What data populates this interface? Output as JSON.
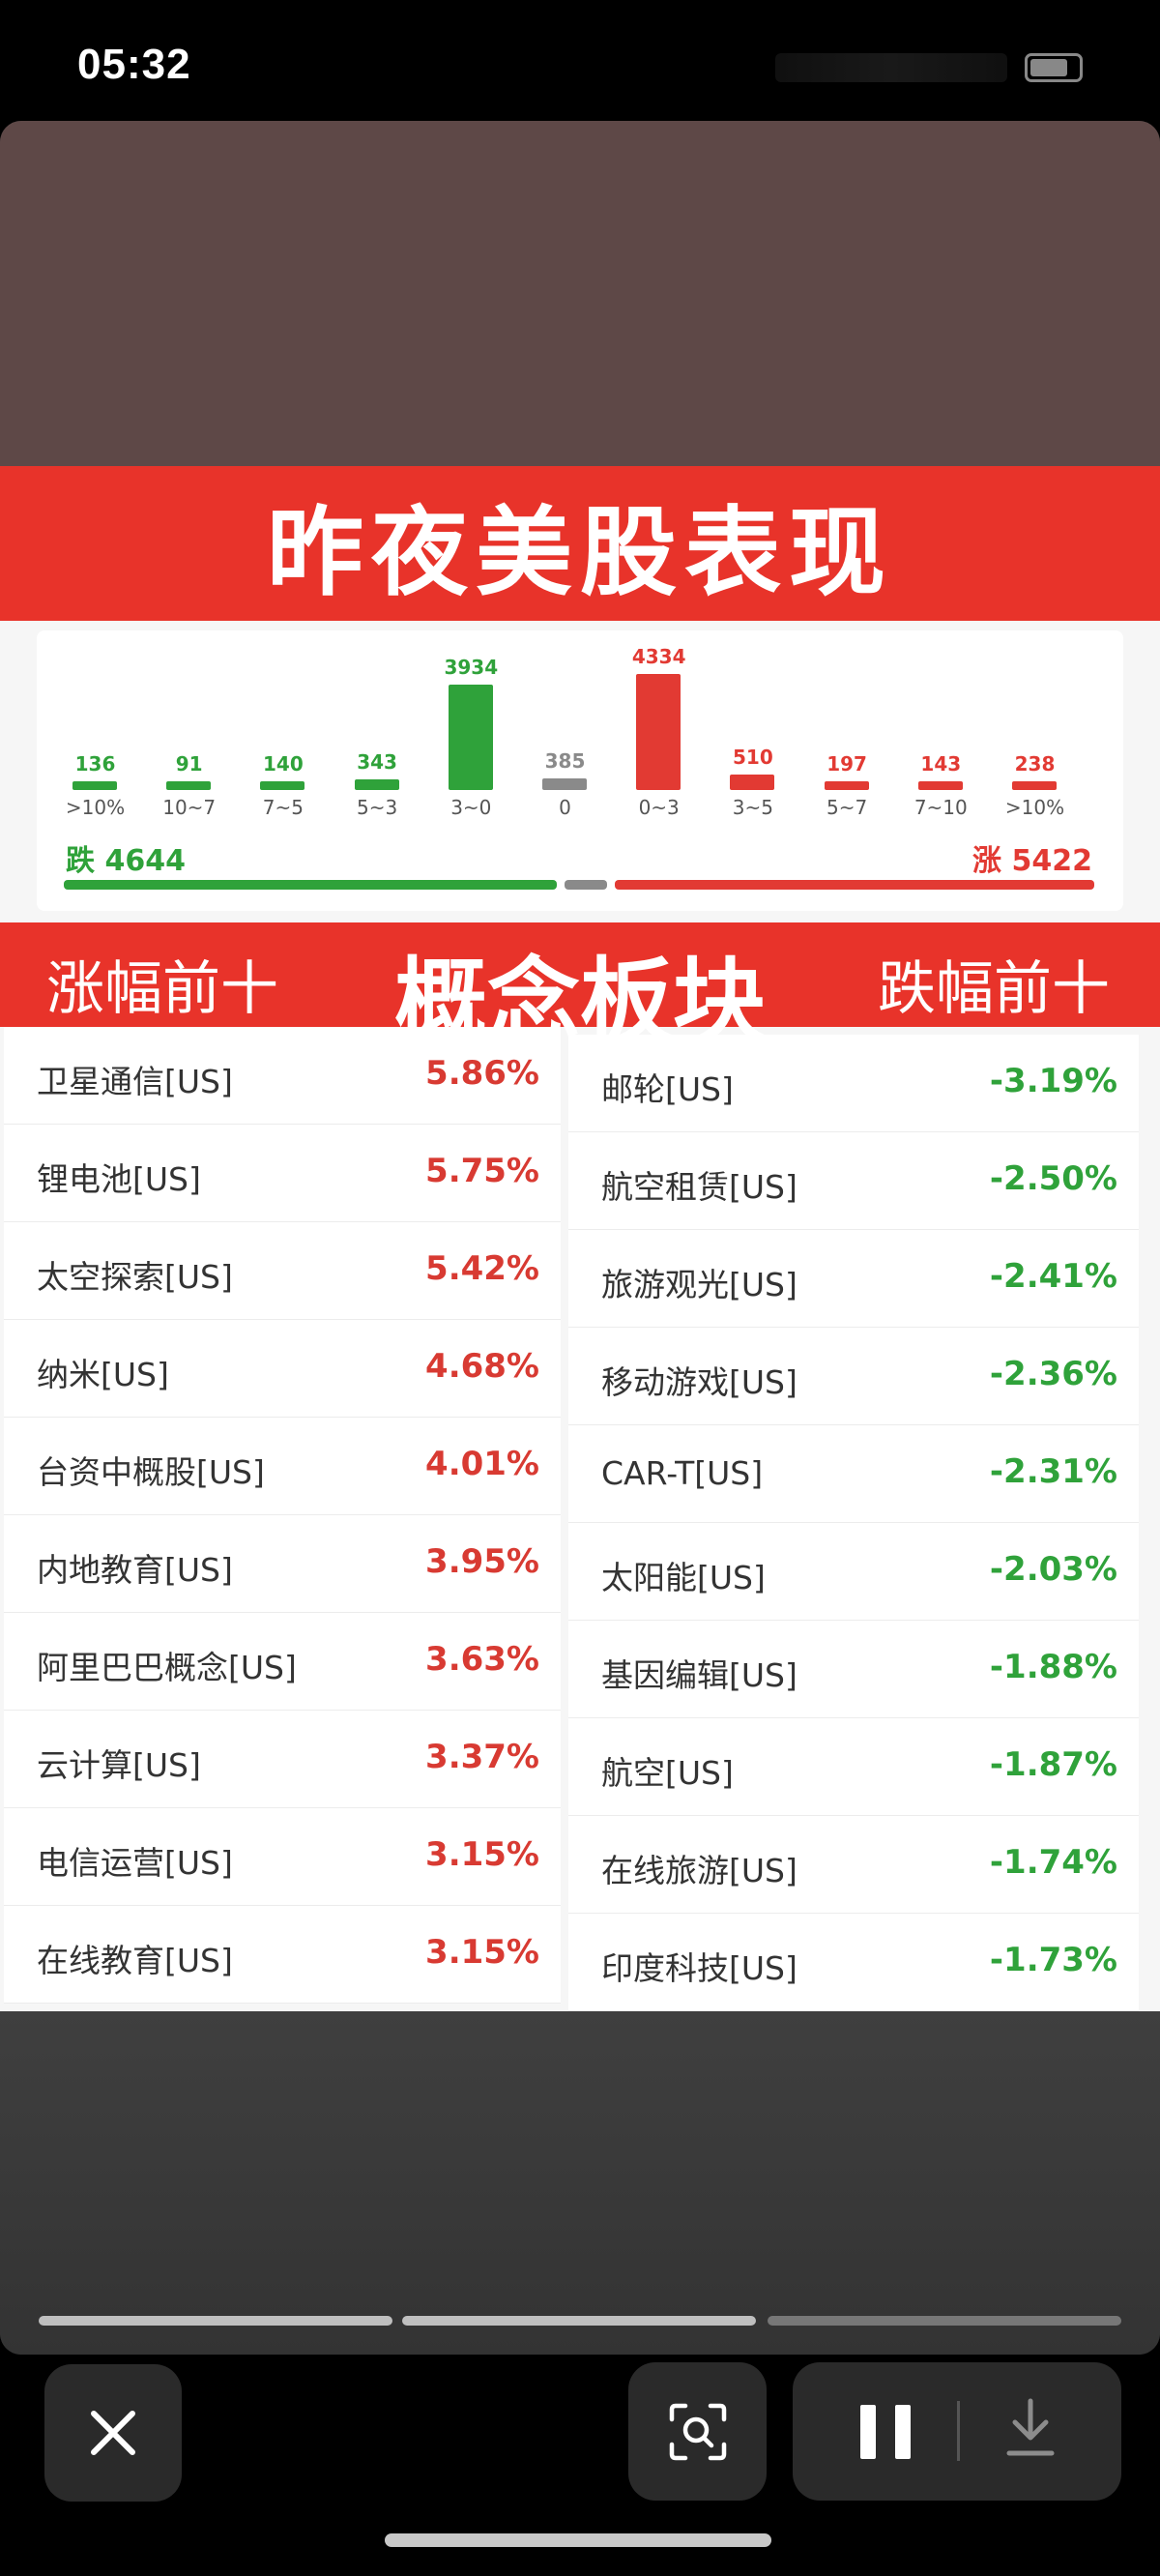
{
  "status_bar": {
    "time": "05:32"
  },
  "image": {
    "title": "昨夜美股表现",
    "distribution": {
      "buckets": [
        {
          "count": "136",
          "range": ">10%",
          "side": "down"
        },
        {
          "count": "91",
          "range": "10~7",
          "side": "down"
        },
        {
          "count": "140",
          "range": "7~5",
          "side": "down"
        },
        {
          "count": "343",
          "range": "5~3",
          "side": "down"
        },
        {
          "count": "3934",
          "range": "3~0",
          "side": "down"
        },
        {
          "count": "385",
          "range": "0",
          "side": "flat"
        },
        {
          "count": "4334",
          "range": "0~3",
          "side": "up"
        },
        {
          "count": "510",
          "range": "3~5",
          "side": "up"
        },
        {
          "count": "197",
          "range": "5~7",
          "side": "up"
        },
        {
          "count": "143",
          "range": "7~10",
          "side": "up"
        },
        {
          "count": "238",
          "range": ">10%",
          "side": "up"
        }
      ],
      "fall_label": "跌 4644",
      "rise_label": "涨 5422"
    },
    "concept": {
      "left_header": "涨幅前十",
      "center_header": "概念板块",
      "right_header": "跌幅前十"
    },
    "gainers": [
      {
        "name": "卫星通信[US]",
        "pct": "5.86%"
      },
      {
        "name": "锂电池[US]",
        "pct": "5.75%"
      },
      {
        "name": "太空探索[US]",
        "pct": "5.42%"
      },
      {
        "name": "纳米[US]",
        "pct": "4.68%"
      },
      {
        "name": "台资中概股[US]",
        "pct": "4.01%"
      },
      {
        "name": "内地教育[US]",
        "pct": "3.95%"
      },
      {
        "name": "阿里巴巴概念[US]",
        "pct": "3.63%"
      },
      {
        "name": "云计算[US]",
        "pct": "3.37%"
      },
      {
        "name": "电信运营[US]",
        "pct": "3.15%"
      },
      {
        "name": "在线教育[US]",
        "pct": "3.15%"
      }
    ],
    "losers": [
      {
        "name": "邮轮[US]",
        "pct": "-3.19%"
      },
      {
        "name": "航空租赁[US]",
        "pct": "-2.50%"
      },
      {
        "name": "旅游观光[US]",
        "pct": "-2.41%"
      },
      {
        "name": "移动游戏[US]",
        "pct": "-2.36%"
      },
      {
        "name": "CAR-T[US]",
        "pct": "-2.31%"
      },
      {
        "name": "太阳能[US]",
        "pct": "-2.03%"
      },
      {
        "name": "基因编辑[US]",
        "pct": "-1.88%"
      },
      {
        "name": "航空[US]",
        "pct": "-1.87%"
      },
      {
        "name": "在线旅游[US]",
        "pct": "-1.74%"
      },
      {
        "name": "印度科技[US]",
        "pct": "-1.73%"
      }
    ]
  },
  "story_progress": [
    1,
    1,
    0.35
  ],
  "controls": {
    "close_icon": "close-icon",
    "scan_icon": "image-search-icon",
    "pause_icon": "pause-icon",
    "download_icon": "download-icon"
  },
  "colors": {
    "up": "#e23a33",
    "down": "#2fa23a",
    "flat": "#8a8a8a",
    "banner": "#e8332a"
  }
}
